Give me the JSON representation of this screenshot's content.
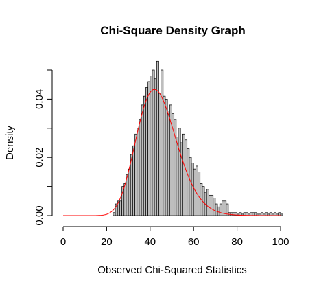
{
  "chart_data": {
    "type": "bar",
    "title": "Chi-Square Density Graph",
    "xlabel": "Observed Chi-Squared Statistics",
    "ylabel": "Density",
    "xlim": [
      0,
      100
    ],
    "ylim": [
      0,
      0.05
    ],
    "xticks": [
      0,
      20,
      40,
      60,
      80,
      100
    ],
    "xtick_labels": [
      "0",
      "20",
      "40",
      "60",
      "80",
      "100"
    ],
    "yticks": [
      0.0,
      0.01,
      0.02,
      0.03,
      0.04,
      0.05
    ],
    "ytick_labels": [
      "0.00",
      "",
      "0.02",
      "",
      "0.04",
      ""
    ],
    "grid": false,
    "legend": "none",
    "histogram": {
      "bin_width": 1,
      "bin_starts": [
        23,
        24,
        25,
        26,
        27,
        28,
        29,
        30,
        31,
        32,
        33,
        34,
        35,
        36,
        37,
        38,
        39,
        40,
        41,
        42,
        43,
        44,
        45,
        46,
        47,
        48,
        49,
        50,
        51,
        52,
        53,
        54,
        55,
        56,
        57,
        58,
        59,
        60,
        61,
        62,
        63,
        64,
        65,
        66,
        67,
        68,
        69,
        70,
        71,
        72,
        73,
        74,
        75,
        76,
        77,
        78,
        79,
        80,
        81,
        82,
        83,
        84,
        85,
        86,
        87,
        88,
        89,
        90,
        91,
        92,
        93,
        94,
        95,
        96,
        97,
        98,
        99,
        100
      ],
      "densities": [
        0.001,
        0.004,
        0.005,
        0.005,
        0.01,
        0.011,
        0.014,
        0.016,
        0.021,
        0.024,
        0.028,
        0.03,
        0.033,
        0.038,
        0.041,
        0.044,
        0.046,
        0.048,
        0.05,
        0.047,
        0.053,
        0.042,
        0.05,
        0.041,
        0.04,
        0.036,
        0.038,
        0.035,
        0.033,
        0.027,
        0.03,
        0.025,
        0.028,
        0.026,
        0.023,
        0.02,
        0.018,
        0.016,
        0.017,
        0.015,
        0.011,
        0.01,
        0.008,
        0.009,
        0.007,
        0.007,
        0.006,
        0.004,
        0.003,
        0.004,
        0.005,
        0.005,
        0.004,
        0.001,
        0.001,
        0.001,
        0.001,
        0.0005,
        0.001,
        0.0005,
        0.001,
        0.001,
        0.0005,
        0.001,
        0.001,
        0.001,
        0.0005,
        0.0005,
        0.001,
        0.0005,
        0.001,
        0.0005,
        0.001,
        0.0005,
        0.001,
        0.0005,
        0.001,
        0.0005
      ],
      "fill_color": "#bebebe",
      "edge_color": "#000000"
    },
    "density_curve": {
      "distribution": "chi-square",
      "df": 44,
      "color": "#ff0000"
    }
  }
}
